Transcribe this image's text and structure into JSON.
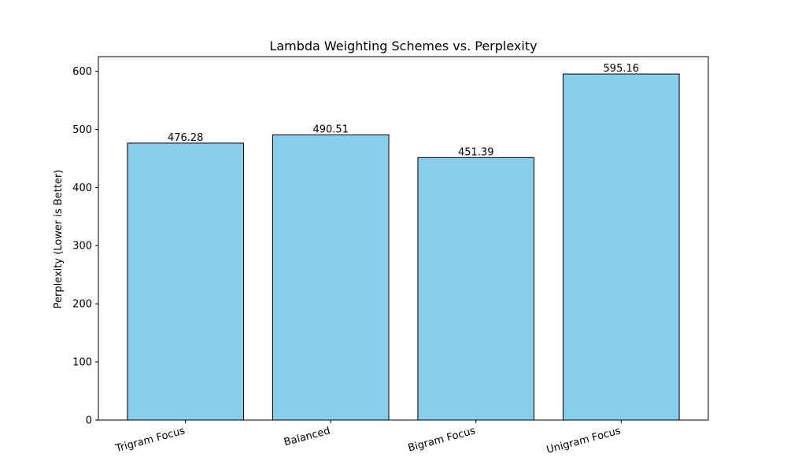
{
  "chart_data": {
    "type": "bar",
    "title": "Lambda Weighting Schemes vs. Perplexity",
    "xlabel": "",
    "ylabel": "Perplexity (Lower is Better)",
    "categories": [
      "Trigram Focus",
      "Balanced",
      "Bigram Focus",
      "Unigram Focus"
    ],
    "values": [
      476.28,
      490.51,
      451.39,
      595.16
    ],
    "value_labels": [
      "476.28",
      "490.51",
      "451.39",
      "595.16"
    ],
    "ylim": [
      0,
      625
    ],
    "yticks": [
      0,
      100,
      200,
      300,
      400,
      500,
      600
    ],
    "ytick_labels": [
      "0",
      "100",
      "200",
      "300",
      "400",
      "500",
      "600"
    ],
    "bar_color": "#87CEEB",
    "edge_color": "#000000",
    "grid": false
  }
}
